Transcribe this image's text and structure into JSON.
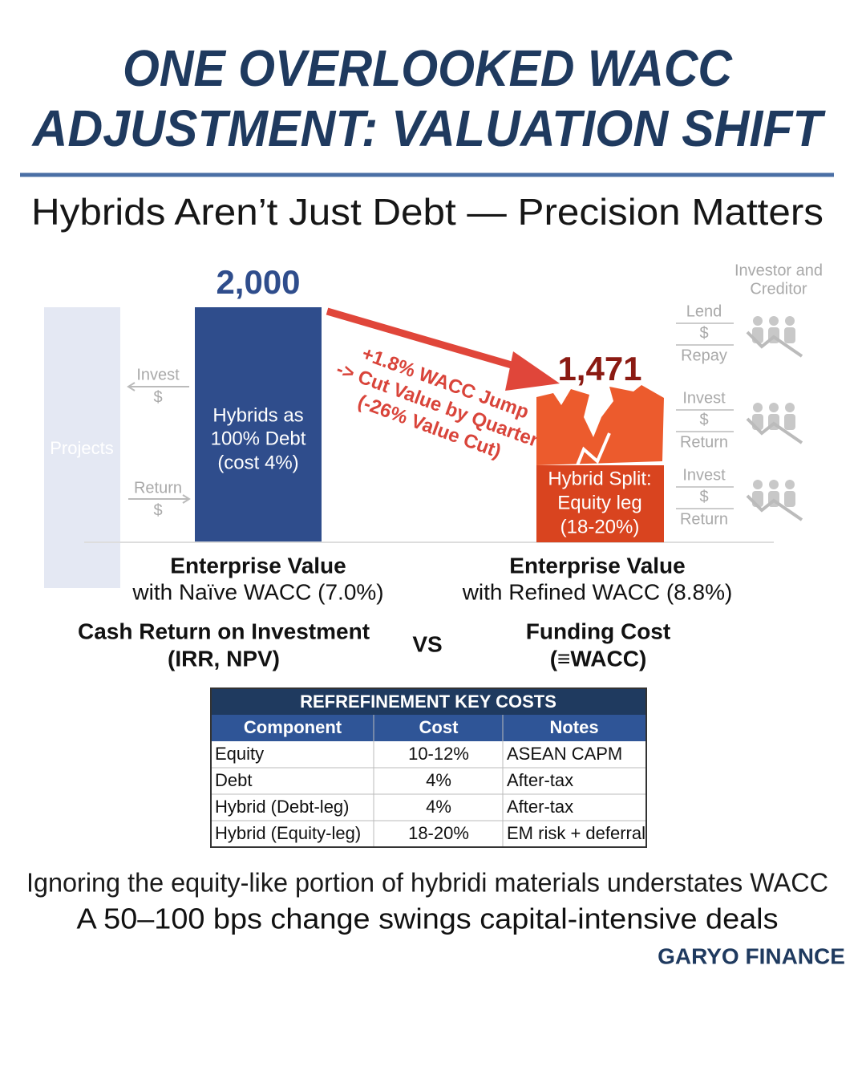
{
  "header": {
    "title": [
      "ONE OVERLOOKED WACC",
      "ADJUSTMENT: VALUATION SHIFT"
    ],
    "subtitle": "Hybrids Aren’t Just Debt — Precision Matters"
  },
  "diagram": {
    "projects": "Projects",
    "project_flows": [
      {
        "label": "Invest",
        "symbol": "$"
      },
      {
        "label": "Return",
        "symbol": "$"
      }
    ],
    "left_bar": {
      "value": "2,000",
      "label": [
        "Hybrids as",
        "100% Debt",
        "(cost 4%)"
      ]
    },
    "arrow_note": [
      "+1.8% WACC Jump",
      "-> Cut Value by Quarter",
      "(-26% Value Cut)"
    ],
    "right_bar": {
      "value": "1,471",
      "label": [
        "Hybrid Split:",
        "Equity leg",
        "(18-20%)"
      ]
    },
    "investor": {
      "title": [
        "Investor and",
        "Creditor"
      ],
      "flows": [
        {
          "top": "Lend",
          "symbol": "$",
          "bottom": "Repay"
        },
        {
          "top": "Invest",
          "symbol": "$",
          "bottom": "Return"
        },
        {
          "top": "Invest",
          "symbol": "$",
          "bottom": "Return"
        }
      ]
    },
    "left_caption": [
      "Enterprise Value",
      "with Naïve WACC (7.0%)"
    ],
    "right_caption": [
      "Enterprise Value",
      "with Refined WACC (8.8%)"
    ]
  },
  "comparison": {
    "left": [
      "Cash Return on Investment",
      "(IRR, NPV)"
    ],
    "vs": "VS",
    "right": [
      "Funding Cost",
      "(≡WACC)"
    ]
  },
  "table": {
    "title": "REFREFINEMENT KEY COSTS",
    "columns": [
      "Component",
      "Cost",
      "Notes"
    ],
    "rows": [
      [
        "Equity",
        "10-12%",
        "ASEAN CAPM"
      ],
      [
        "Debt",
        "4%",
        "After-tax"
      ],
      [
        "Hybrid (Debt-leg)",
        "4%",
        "After-tax"
      ],
      [
        "Hybrid (Equity-leg)",
        "18-20%",
        "EM risk + deferral"
      ]
    ]
  },
  "footer": {
    "lines": [
      "Ignoring the equity-like portion of hybridi materials understates WACC",
      "A 50–100 bps change swings capital-intensive deals"
    ],
    "brand": "GARYO FINANCE"
  }
}
